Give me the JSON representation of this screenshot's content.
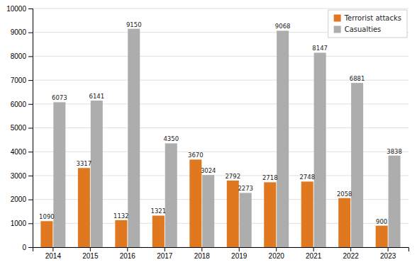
{
  "chart_data": {
    "type": "bar",
    "categories": [
      "2014",
      "2015",
      "2016",
      "2017",
      "2018",
      "2019",
      "2020",
      "2021",
      "2022",
      "2023"
    ],
    "series": [
      {
        "name": "Terrorist attacks",
        "color": "#E07820",
        "values": [
          1090,
          3317,
          1132,
          1321,
          3670,
          2792,
          2718,
          2748,
          2058,
          900
        ]
      },
      {
        "name": "Casualties",
        "color": "#ADADAD",
        "values": [
          6073,
          6141,
          9150,
          4350,
          3024,
          2273,
          9068,
          8147,
          6881,
          3838
        ]
      }
    ],
    "ylim": [
      0,
      10000
    ],
    "yticks": [
      0,
      1000,
      2000,
      3000,
      4000,
      5000,
      6000,
      7000,
      8000,
      9000,
      10000
    ],
    "grid": true,
    "legend": "upper right",
    "data_labels": true
  }
}
